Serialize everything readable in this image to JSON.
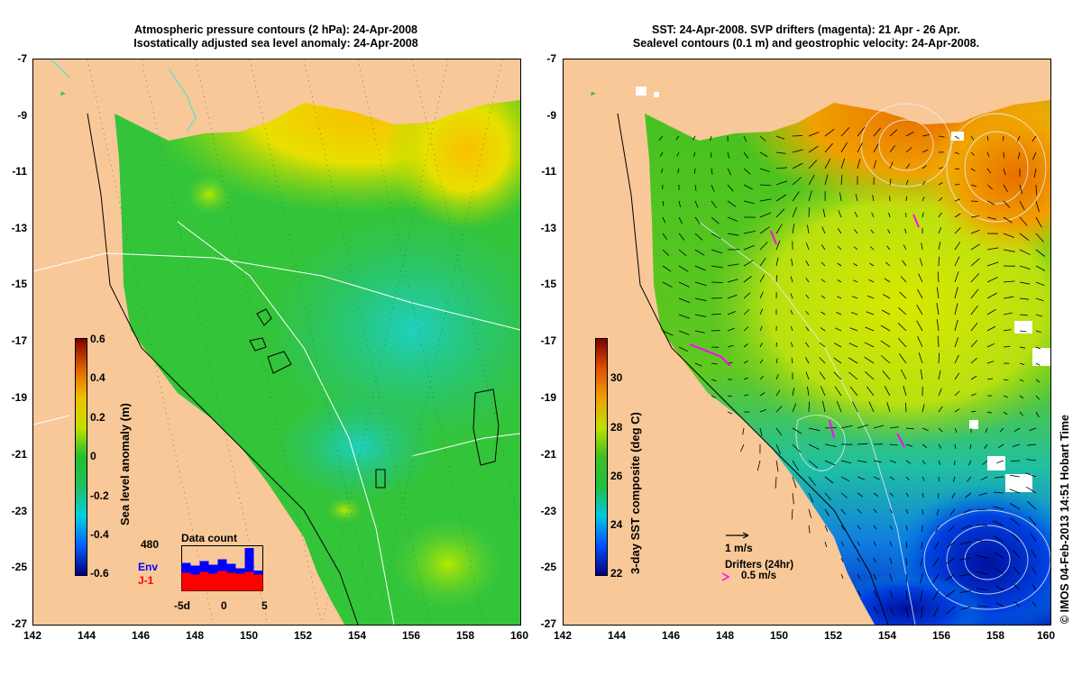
{
  "left_panel": {
    "title_line1": "Atmospheric pressure contours (2 hPa): 24-Apr-2008",
    "title_line2": "Isostatically adjusted sea level anomaly: 24-Apr-2008",
    "colorbar": {
      "label": "Sea level anomaly (m)",
      "ticks": [
        "0.6",
        "0.4",
        "0.2",
        "0",
        "-0.2",
        "-0.4",
        "-0.6"
      ],
      "colors": [
        "#00007f",
        "#0060ff",
        "#00d0e0",
        "#20c060",
        "#20c030",
        "#c0e000",
        "#f0c000",
        "#e06000",
        "#7f0000"
      ]
    },
    "inset": {
      "title": "Data count",
      "max_label": "480",
      "legend_env": "Env",
      "legend_j1": "J-1",
      "xticks": [
        "-5d",
        "0",
        "5"
      ],
      "env_color": "#0000ff",
      "j1_color": "#ff0000",
      "env_values": [
        0.62,
        0.56,
        0.66,
        0.58,
        0.7,
        0.6,
        0.5,
        0.95,
        0.45
      ],
      "j1_values": [
        0.4,
        0.36,
        0.42,
        0.38,
        0.44,
        0.4,
        0.38,
        0.42,
        0.36
      ]
    }
  },
  "right_panel": {
    "title_line1": "SST: 24-Apr-2008. SVP drifters (magenta): 21 Apr - 26 Apr.",
    "title_line2": "Sealevel contours (0.1 m) and geostrophic velocity: 24-Apr-2008.",
    "colorbar": {
      "label": "3-day SST composite (deg C)",
      "ticks": [
        "30",
        "28",
        "26",
        "24",
        "22"
      ],
      "colors": [
        "#00007f",
        "#0050ff",
        "#00c8e0",
        "#20c040",
        "#40c020",
        "#c0e000",
        "#f0a000",
        "#e05000",
        "#7f0000"
      ]
    },
    "scale_label": "1 m/s",
    "drifters_label": "Drifters (24hr)",
    "drifter_speed_label": "0.5 m/s",
    "drifter_color": "#ff00ff"
  },
  "axes": {
    "lat_ticks": [
      "-7",
      "-9",
      "-11",
      "-13",
      "-15",
      "-17",
      "-19",
      "-21",
      "-23",
      "-25",
      "-27"
    ],
    "lon_ticks": [
      "142",
      "144",
      "146",
      "148",
      "150",
      "152",
      "154",
      "156",
      "158",
      "160"
    ]
  },
  "colors": {
    "land": "#f8c898",
    "sla_background": "#34c43a",
    "sst_background": "#40c820"
  },
  "credit": "© IMOS 04-Feb-2013 14:51 Hobart Time"
}
